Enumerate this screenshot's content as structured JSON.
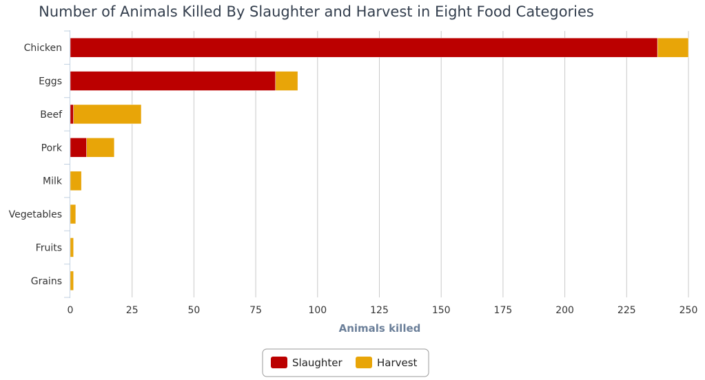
{
  "chart_data": {
    "type": "bar",
    "orientation": "horizontal",
    "stacked": true,
    "title": "Number of Animals Killed By Slaughter and Harvest in Eight Food Categories",
    "xlabel": "Animals killed",
    "ylabel": "",
    "categories": [
      "Chicken",
      "Eggs",
      "Beef",
      "Pork",
      "Milk",
      "Vegetables",
      "Fruits",
      "Grains"
    ],
    "series": [
      {
        "name": "Slaughter",
        "color": "#bb0000",
        "values": [
          237.5,
          83,
          1.3,
          6.6,
          0,
          0,
          0,
          0
        ]
      },
      {
        "name": "Harvest",
        "color": "#e8a508",
        "values": [
          12.5,
          9,
          27.4,
          11.2,
          4.5,
          2.2,
          1.3,
          1.3
        ]
      }
    ],
    "xlim": [
      0,
      250
    ],
    "xticks": [
      0,
      25,
      50,
      75,
      100,
      125,
      150,
      175,
      200,
      225,
      250
    ],
    "grid": true,
    "legend_position": "bottom-center"
  }
}
